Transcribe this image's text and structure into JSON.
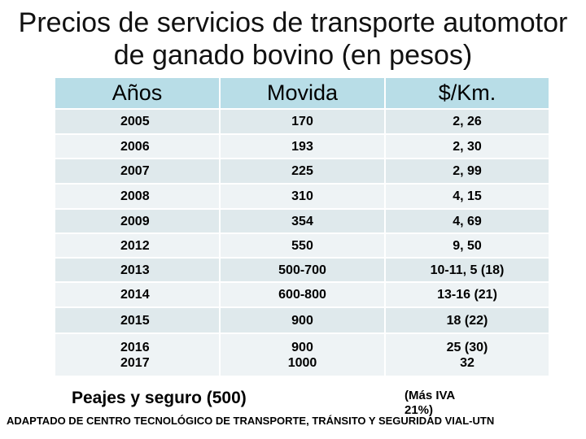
{
  "header": {
    "title": "Precios de servicios de transporte automotor de ganado bovino (en pesos)"
  },
  "table": {
    "columns": [
      "Años",
      "Movida",
      "$/Km."
    ],
    "rows": [
      [
        "2005",
        "170",
        "2, 26"
      ],
      [
        "2006",
        "193",
        "2, 30"
      ],
      [
        "2007",
        "225",
        "2, 99"
      ],
      [
        "2008",
        "310",
        "4, 15"
      ],
      [
        "2009",
        "354",
        "4, 69"
      ],
      [
        "2012",
        "550",
        "9, 50"
      ],
      [
        "2013",
        "500-700",
        "10-11, 5 (18)"
      ],
      [
        "2014",
        "600-800",
        "13-16 (21)"
      ],
      [
        "2015",
        "900",
        "18 (22)"
      ],
      [
        "2016\n2017",
        "900\n1000",
        "25 (30)\n32"
      ]
    ]
  },
  "notes": {
    "tolls": "Peajes y seguro (500)",
    "vat": "(Más IVA 21%)",
    "source": "ADAPTADO DE CENTRO TECNOLÓGICO DE TRANSPORTE, TRÁNSITO Y SEGURIDAD VIAL-UTN"
  }
}
